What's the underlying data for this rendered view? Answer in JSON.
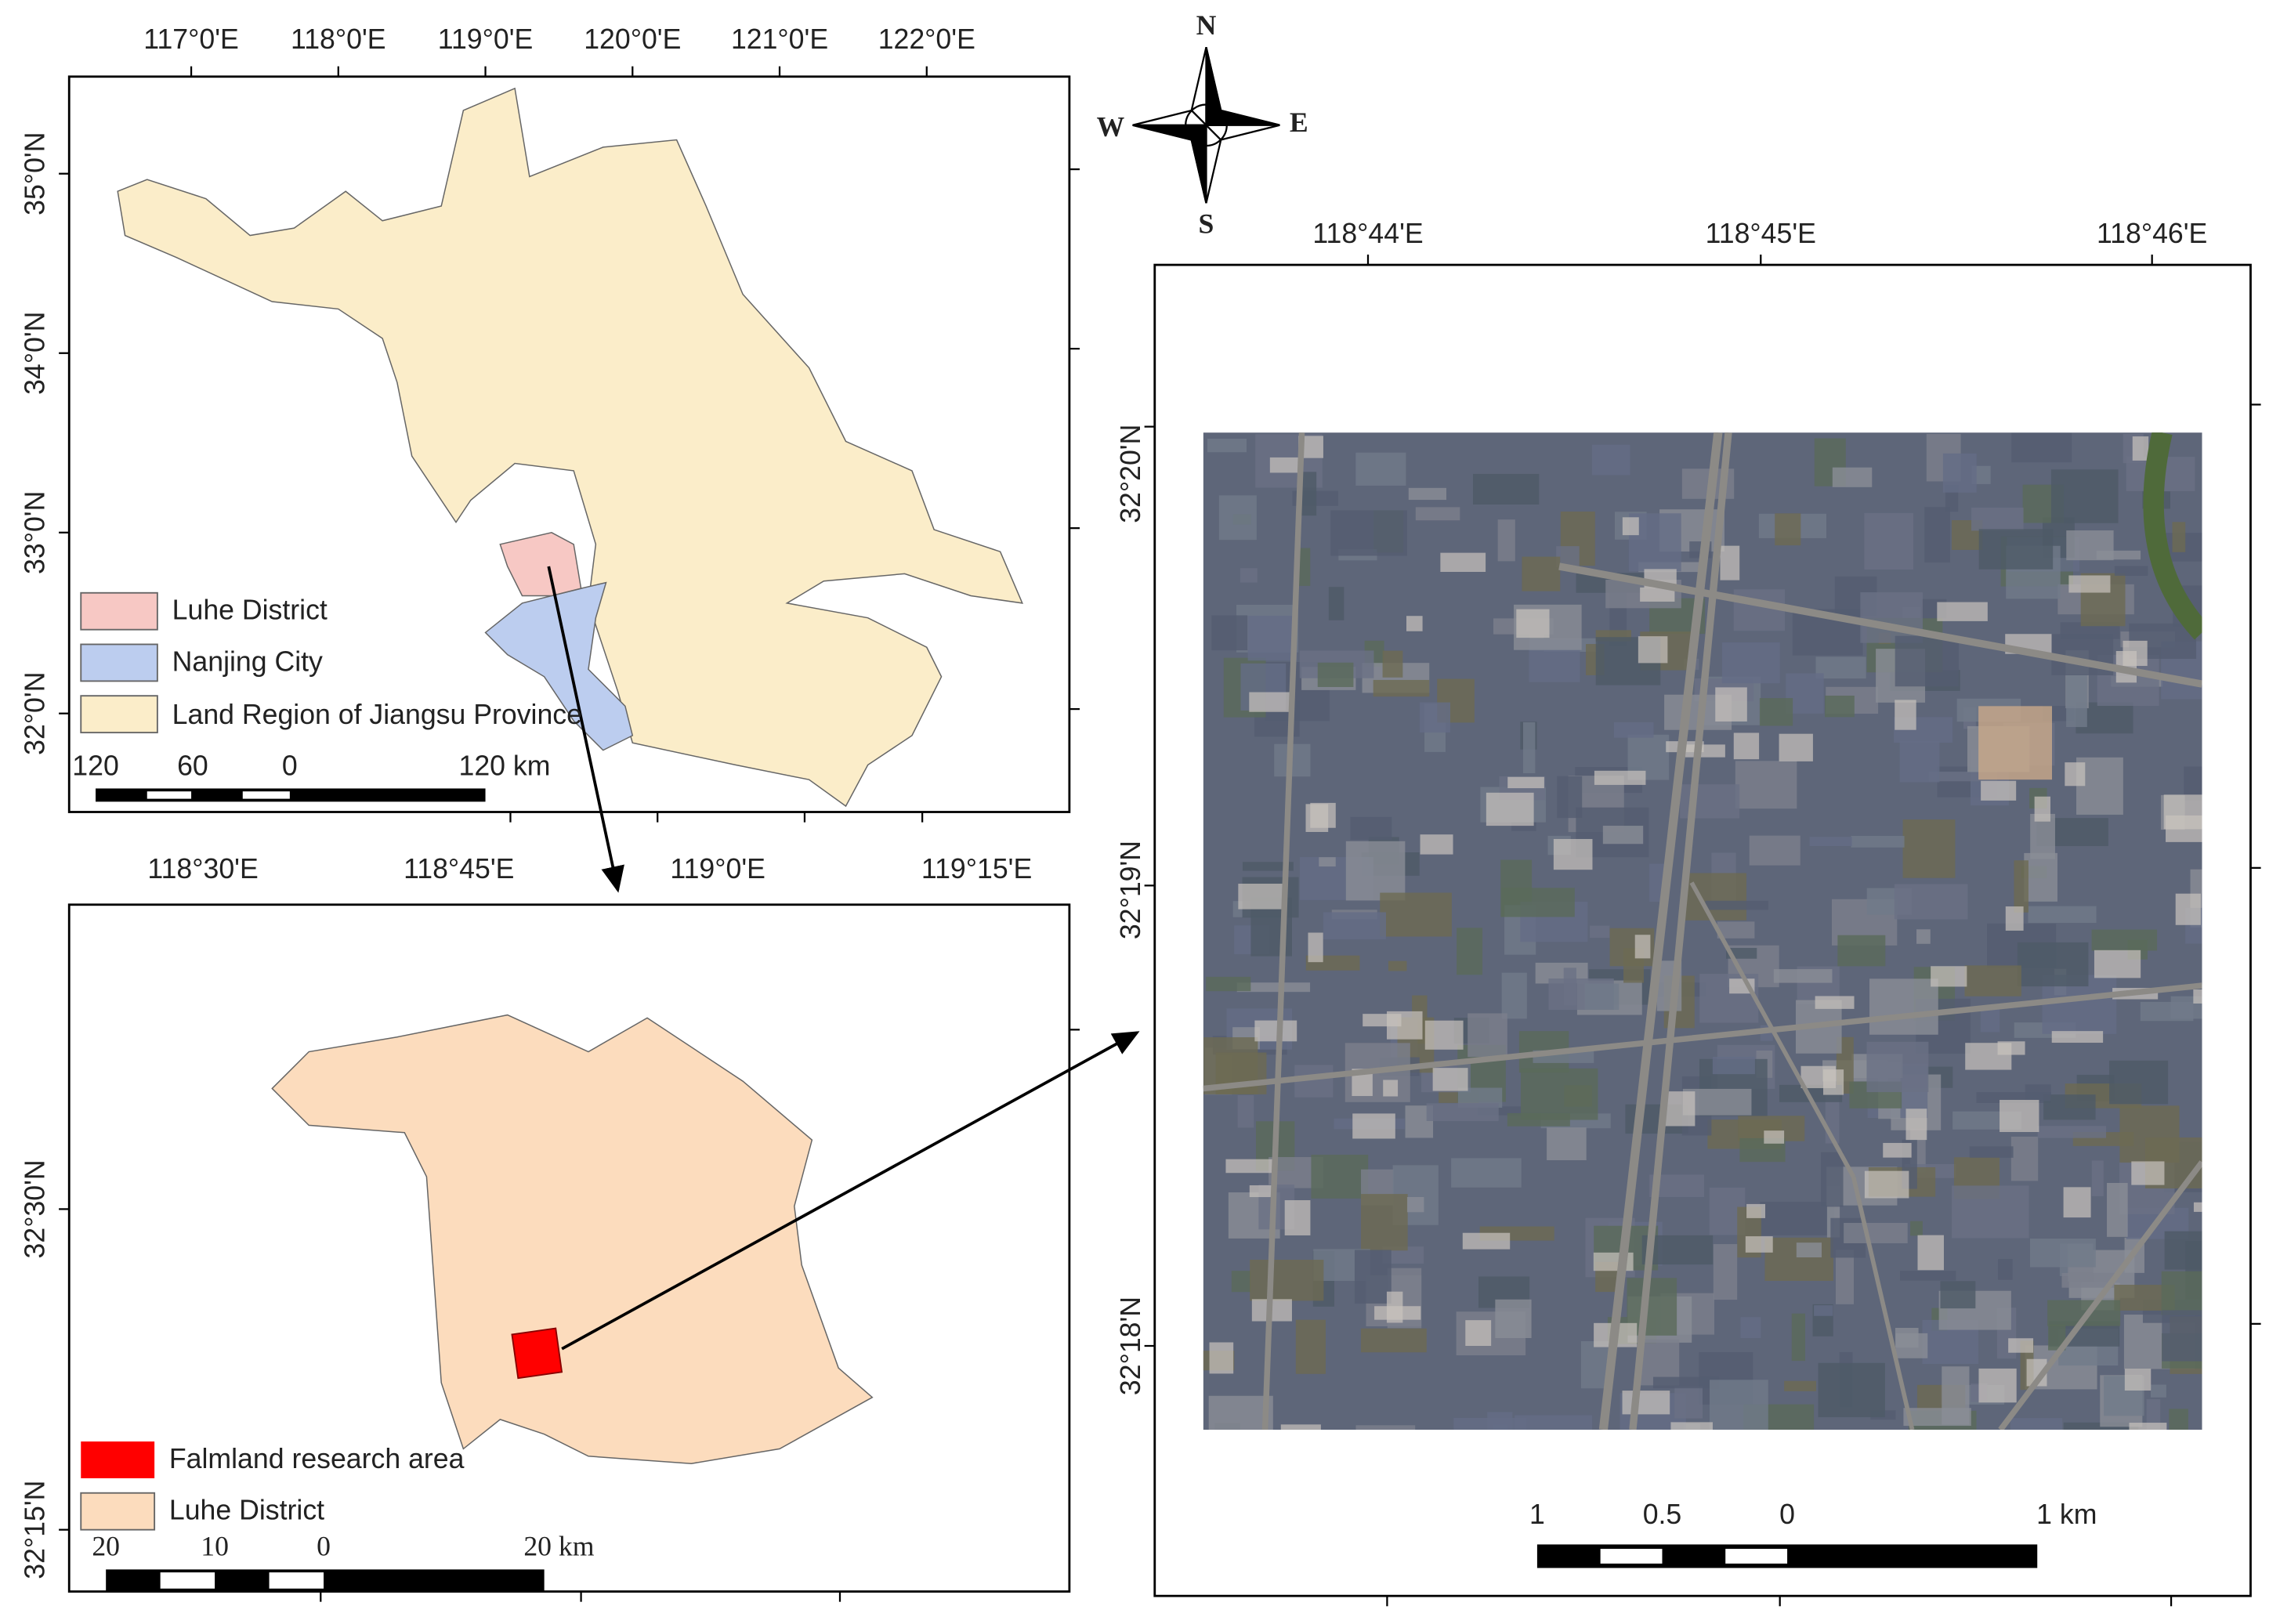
{
  "top_map": {
    "lon_labels": [
      "117°0'E",
      "118°0'E",
      "119°0'E",
      "120°0'E",
      "121°0'E",
      "122°0'E"
    ],
    "lat_labels": [
      "35°0'N",
      "34°0'N",
      "33°0'N",
      "32°0'N"
    ],
    "legend": [
      "Luhe District",
      "Nanjing City",
      "Land Region of Jiangsu Province"
    ],
    "scale_labels": [
      "120",
      "60",
      "0",
      "120 km"
    ]
  },
  "bottom_map": {
    "lon_labels": [
      "118°30'E",
      "118°45'E",
      "119°0'E",
      "119°15'E"
    ],
    "lat_labels": [
      "32°30'N",
      "32°15'N"
    ],
    "legend": [
      "Falmland research area",
      "Luhe District"
    ],
    "scale_labels": [
      "20",
      "10",
      "0",
      "20 km"
    ]
  },
  "right_map": {
    "lon_labels": [
      "118°44'E",
      "118°45'E",
      "118°46'E"
    ],
    "lat_labels": [
      "32°20'N",
      "32°19'N",
      "32°18'N"
    ],
    "scale_labels": [
      "1",
      "0.5",
      "0",
      "1 km"
    ]
  },
  "compass": [
    "N",
    "S",
    "W",
    "E"
  ]
}
